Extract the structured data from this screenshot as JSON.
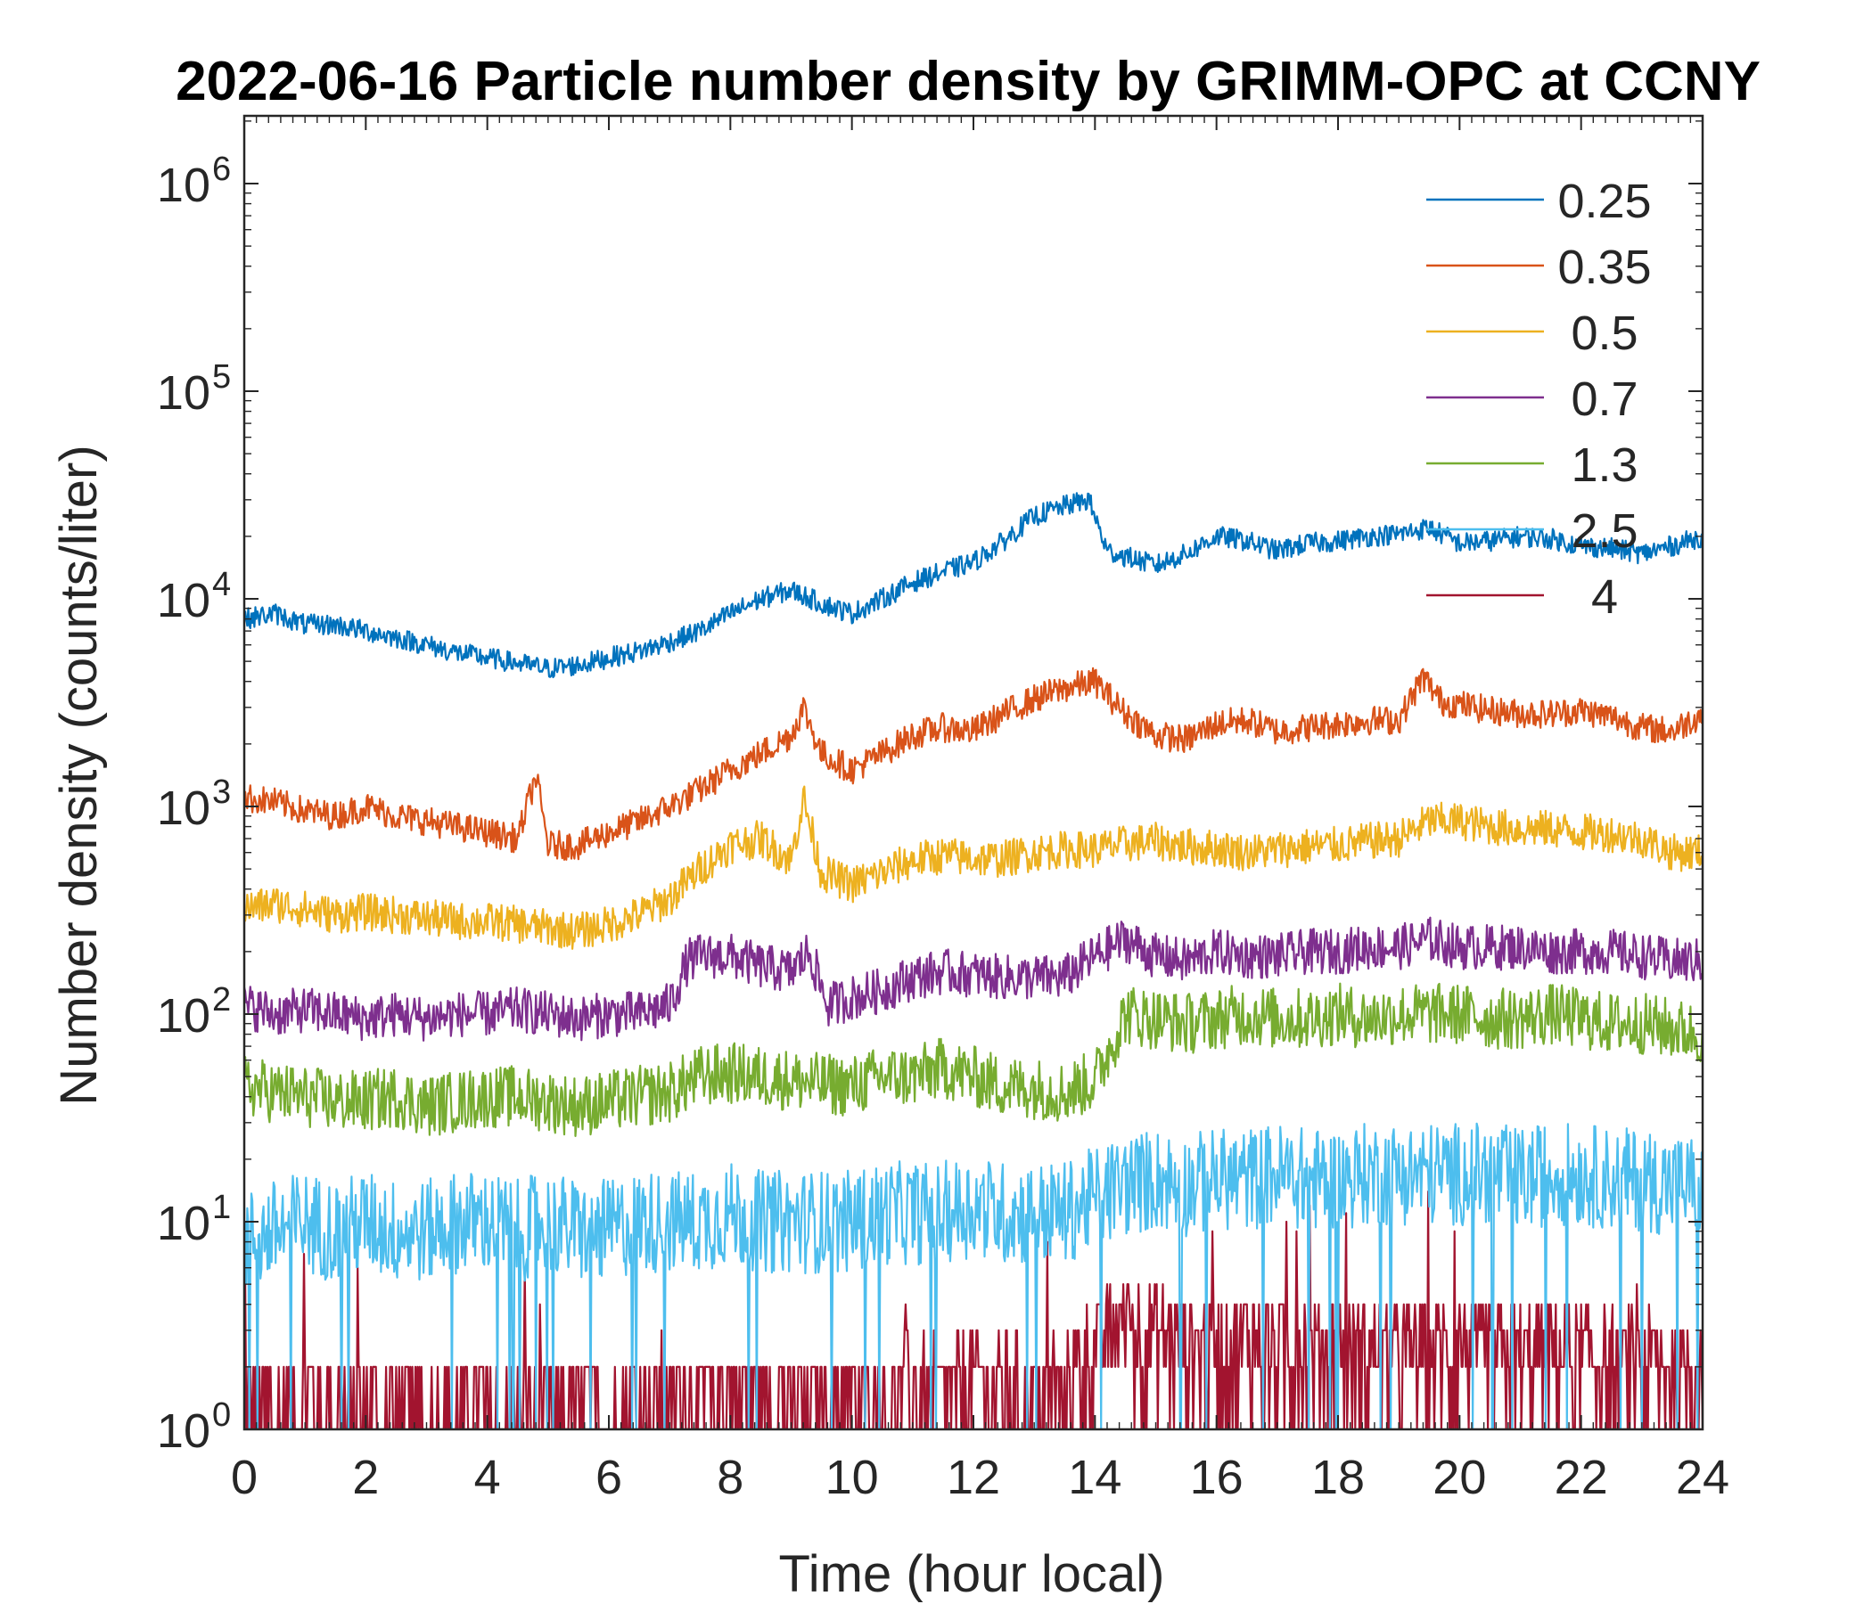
{
  "chart_data": {
    "type": "line",
    "title": "2022-06-16 Particle number density by GRIMM-OPC at CCNY",
    "xlabel": "Time (hour local)",
    "ylabel": "Number density (counts/liter)",
    "xlim": [
      0,
      24
    ],
    "ylim": [
      1,
      2000000
    ],
    "yscale": "log",
    "x_ticks": [
      "0",
      "2",
      "4",
      "6",
      "8",
      "10",
      "12",
      "14",
      "16",
      "18",
      "20",
      "22",
      "24"
    ],
    "y_tick_base": "10",
    "y_tick_exponents": [
      "0",
      "1",
      "2",
      "3",
      "4",
      "5",
      "6"
    ],
    "legend_location": "top-right",
    "grid": false,
    "series": [
      {
        "name": "0.25",
        "color": "#0072BD",
        "x": [
          0,
          0.5,
          1,
          1.5,
          2,
          2.5,
          3,
          3.5,
          4,
          4.5,
          5,
          5.5,
          6,
          6.5,
          7,
          7.5,
          8,
          8.5,
          9,
          9.5,
          10,
          10.5,
          11,
          11.5,
          12,
          12.5,
          13,
          13.5,
          13.9,
          14.2,
          14.5,
          15,
          15.5,
          16,
          16.5,
          17,
          17.5,
          18,
          18.5,
          19,
          19.5,
          20,
          20.5,
          21,
          21.5,
          22,
          22.5,
          23,
          23.5,
          24
        ],
        "values": [
          8000,
          8500,
          7500,
          7500,
          7000,
          6500,
          6000,
          5500,
          5200,
          4900,
          4600,
          4800,
          5200,
          5600,
          6200,
          7000,
          8500,
          10000,
          11000,
          9500,
          8500,
          10000,
          12000,
          13500,
          15000,
          19000,
          25000,
          28000,
          30000,
          17000,
          16000,
          14500,
          16500,
          20000,
          19000,
          17000,
          18500,
          19000,
          20000,
          20500,
          22000,
          18500,
          19000,
          20000,
          19500,
          18000,
          17500,
          16500,
          18000,
          20000
        ]
      },
      {
        "name": "0.35",
        "color": "#D95319",
        "x": [
          0,
          0.5,
          1,
          1.5,
          2,
          2.5,
          3,
          3.5,
          4,
          4.5,
          4.8,
          5,
          5.5,
          6,
          6.5,
          7,
          7.5,
          8,
          8.5,
          9,
          9.2,
          9.5,
          10,
          10.5,
          11,
          11.5,
          12,
          12.5,
          13,
          13.5,
          14,
          14.5,
          15,
          15.5,
          16,
          16.5,
          17,
          17.5,
          18,
          18.5,
          19,
          19.4,
          19.7,
          20,
          20.5,
          21,
          21.5,
          22,
          22.5,
          23,
          23.5,
          24
        ],
        "values": [
          1100,
          1050,
          950,
          900,
          1000,
          900,
          850,
          800,
          750,
          700,
          1400,
          650,
          650,
          750,
          850,
          1000,
          1200,
          1500,
          1800,
          2200,
          3000,
          1800,
          1500,
          1800,
          2200,
          2400,
          2300,
          2800,
          3300,
          3700,
          4000,
          2800,
          2200,
          2100,
          2500,
          2600,
          2300,
          2400,
          2500,
          2600,
          2600,
          4200,
          3200,
          3100,
          2900,
          2800,
          2800,
          2900,
          2700,
          2400,
          2300,
          2800
        ]
      },
      {
        "name": "0.5",
        "color": "#EDB120",
        "x": [
          0,
          0.5,
          1,
          1.5,
          2,
          2.5,
          3,
          3.5,
          4,
          4.5,
          5,
          5.5,
          6,
          6.5,
          7,
          7.5,
          8,
          8.5,
          9,
          9.2,
          9.5,
          10,
          10.5,
          11,
          11.5,
          12,
          12.5,
          13,
          13.5,
          14,
          14.5,
          15,
          15.5,
          16,
          16.5,
          17,
          17.5,
          18,
          18.5,
          19,
          19.5,
          20,
          20.5,
          21,
          21.5,
          22,
          22.5,
          23,
          23.5,
          24
        ],
        "values": [
          320,
          340,
          320,
          300,
          310,
          300,
          290,
          280,
          280,
          270,
          260,
          250,
          270,
          300,
          360,
          500,
          650,
          700,
          550,
          1100,
          480,
          420,
          480,
          550,
          580,
          560,
          560,
          600,
          620,
          620,
          660,
          680,
          640,
          630,
          600,
          620,
          640,
          650,
          680,
          700,
          850,
          850,
          800,
          780,
          780,
          750,
          740,
          700,
          600,
          600
        ]
      },
      {
        "name": "0.7",
        "color": "#7E2F8E",
        "x": [
          0,
          0.5,
          1,
          1.5,
          2,
          2.5,
          3,
          3.5,
          4,
          4.5,
          5,
          5.5,
          6,
          6.5,
          7,
          7.3,
          7.5,
          8,
          8.5,
          9,
          9.3,
          9.6,
          10,
          10.5,
          11,
          11.5,
          12,
          12.5,
          13,
          13.5,
          14,
          14.5,
          15,
          15.5,
          16,
          16.5,
          17,
          17.5,
          18,
          18.5,
          19,
          19.5,
          20,
          20.5,
          21,
          21.5,
          22,
          22.5,
          23,
          23.5,
          24
        ],
        "values": [
          110,
          100,
          105,
          100,
          95,
          100,
          95,
          100,
          100,
          105,
          100,
          95,
          100,
          100,
          110,
          180,
          190,
          190,
          170,
          160,
          200,
          110,
          120,
          130,
          150,
          160,
          155,
          150,
          150,
          150,
          190,
          230,
          190,
          180,
          200,
          190,
          190,
          200,
          200,
          210,
          210,
          230,
          210,
          210,
          210,
          200,
          200,
          200,
          190,
          180,
          180
        ]
      },
      {
        "name": "1.3",
        "color": "#77AC30",
        "x": [
          0,
          0.5,
          1,
          1.5,
          2,
          2.5,
          3,
          3.5,
          4,
          4.5,
          5,
          5.5,
          6,
          6.5,
          7,
          7.5,
          8,
          8.5,
          9,
          9.5,
          10,
          10.5,
          11,
          11.5,
          12,
          12.5,
          13,
          13.5,
          14,
          14.5,
          15,
          15.5,
          16,
          16.5,
          17,
          17.5,
          18,
          18.5,
          19,
          19.5,
          20,
          20.5,
          21,
          21.5,
          22,
          22.5,
          23,
          23.5,
          24
        ],
        "values": [
          45,
          42,
          40,
          38,
          38,
          40,
          36,
          38,
          40,
          40,
          38,
          36,
          38,
          40,
          42,
          50,
          52,
          50,
          48,
          46,
          45,
          50,
          50,
          55,
          50,
          45,
          44,
          42,
          48,
          100,
          95,
          90,
          95,
          100,
          95,
          95,
          100,
          95,
          100,
          100,
          100,
          95,
          95,
          100,
          95,
          90,
          90,
          85,
          80
        ]
      },
      {
        "name": "2.5",
        "color": "#4DBEEE",
        "x": [
          0,
          0.5,
          1,
          1.5,
          2,
          2.5,
          3,
          3.5,
          4,
          4.5,
          5,
          5.5,
          6,
          6.5,
          7,
          7.5,
          8,
          8.5,
          9,
          9.5,
          10,
          10.5,
          11,
          11.5,
          12,
          12.5,
          13,
          13.5,
          14,
          14.5,
          15,
          15.5,
          16,
          16.5,
          17,
          17.5,
          18,
          18.5,
          19,
          19.5,
          20,
          20.5,
          21,
          21.5,
          22,
          22.5,
          23,
          23.5,
          24
        ],
        "values": [
          8,
          9,
          10,
          9,
          10,
          9,
          9,
          10,
          10,
          9,
          10,
          9,
          9,
          10,
          10,
          10,
          11,
          10,
          10,
          10,
          10,
          11,
          11,
          11,
          12,
          11,
          11,
          11,
          13,
          15,
          16,
          15,
          16,
          16,
          17,
          16,
          16,
          17,
          17,
          17,
          17,
          17,
          16,
          17,
          17,
          16,
          16,
          15,
          15
        ]
      },
      {
        "name": "4",
        "color": "#A2142F",
        "x": [
          0,
          0.5,
          1,
          1.5,
          2,
          2.5,
          3,
          3.5,
          4,
          4.5,
          5,
          5.5,
          6,
          6.5,
          7,
          7.5,
          8,
          8.5,
          9,
          9.5,
          10,
          10.5,
          11,
          11.5,
          12,
          12.5,
          13,
          13.5,
          14,
          14.5,
          15,
          15.5,
          16,
          16.5,
          17,
          17.5,
          18,
          18.5,
          19,
          19.5,
          20,
          20.5,
          21,
          21.5,
          22,
          22.5,
          23,
          23.5,
          24
        ],
        "values": [
          1,
          1,
          1.2,
          1,
          1.1,
          1,
          1,
          1,
          1.1,
          1,
          1,
          1.1,
          1,
          1.2,
          1.3,
          1.2,
          1.3,
          1.2,
          1.2,
          1.2,
          1.2,
          1.3,
          1.3,
          1.3,
          1.5,
          1.4,
          1.3,
          1.3,
          2.2,
          2.8,
          2.5,
          2.2,
          2.2,
          2.3,
          2.2,
          2.1,
          2.2,
          2.0,
          2.0,
          2.0,
          2.1,
          2.0,
          2.0,
          2.0,
          1.9,
          1.8,
          1.8,
          1.7,
          1.6
        ]
      }
    ]
  }
}
